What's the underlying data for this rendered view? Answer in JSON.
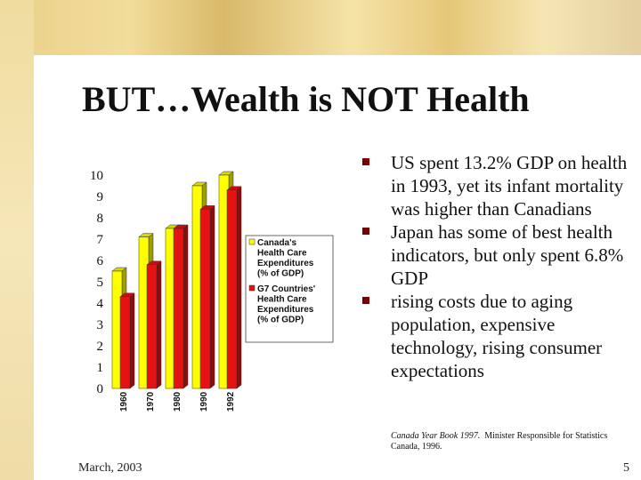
{
  "slide": {
    "title": "BUT…Wealth is NOT Health",
    "bullets": [
      "US spent 13.2% GDP on health in 1993, yet its infant mortality was higher than Canadians",
      "Japan has some of best health indicators, but only spent 6.8% GDP",
      "rising costs due to aging population, expensive technology, rising consumer expectations"
    ],
    "source_italic": "Canada Year Book 1997.",
    "source_rest": "Minister Responsible for Statistics Canada, 1996.",
    "footer_date": "March, 2003",
    "page_number": "5"
  },
  "colors": {
    "series1": "#ffff00",
    "series2": "#e41212",
    "bullet": "#7a0000",
    "background": "#f4e7bf"
  },
  "chart_data": {
    "type": "bar",
    "style": "3d",
    "categories": [
      "1960",
      "1970",
      "1980",
      "1990",
      "1992"
    ],
    "series": [
      {
        "name": "Canada's Health Care Expenditures (% of GDP)",
        "values": [
          5.5,
          7.1,
          7.5,
          9.5,
          10
        ]
      },
      {
        "name": "G7 Countries' Health Care Expenditures (% of GDP)",
        "values": [
          4.3,
          5.8,
          7.5,
          8.4,
          9.3
        ]
      }
    ],
    "y_ticks": [
      "0",
      "1",
      "2",
      "3",
      "4",
      "5",
      "6",
      "7",
      "8",
      "9",
      "10"
    ],
    "ylim": [
      0,
      10
    ],
    "legend_position": "right",
    "grid": false
  }
}
